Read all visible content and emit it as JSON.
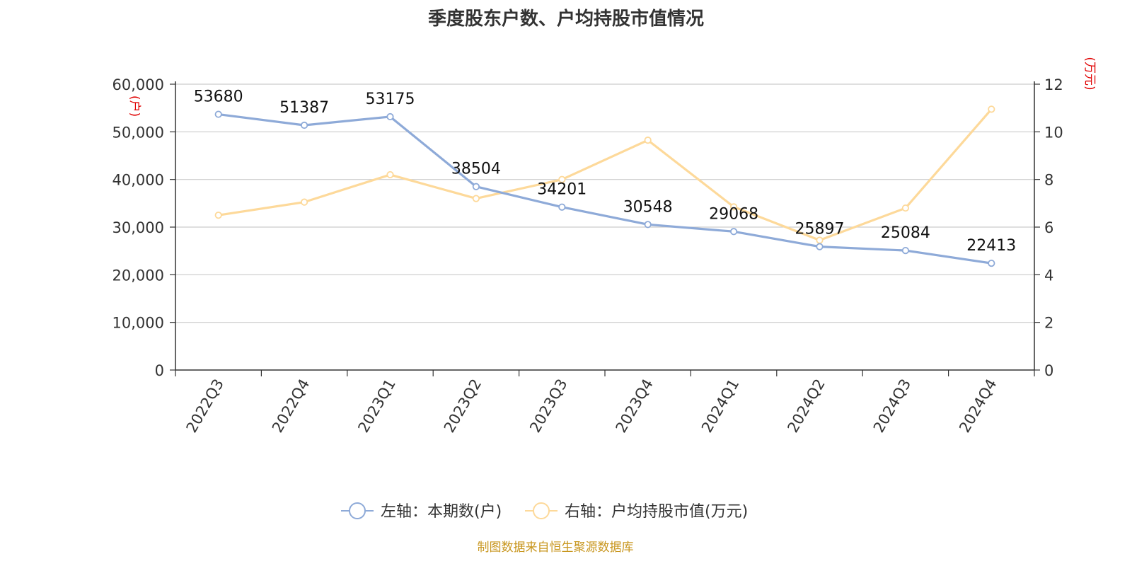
{
  "title": "季度股东户数、户均持股市值情况",
  "source": "制图数据来自恒生聚源数据库",
  "colors": {
    "left_series": "#8eaad8",
    "right_series": "#fdd99a",
    "unit": "#e00000",
    "source": "#c8961e",
    "grid": "#cccccc"
  },
  "chart_data": {
    "type": "line",
    "categories": [
      "2022Q3",
      "2022Q4",
      "2023Q1",
      "2023Q2",
      "2023Q3",
      "2023Q4",
      "2024Q1",
      "2024Q2",
      "2024Q3",
      "2024Q4"
    ],
    "left_axis": {
      "unit": "(户)",
      "ylim": [
        0,
        60000
      ],
      "ticks": [
        "0",
        "10,000",
        "20,000",
        "30,000",
        "40,000",
        "50,000",
        "60,000"
      ]
    },
    "right_axis": {
      "unit": "(万元)",
      "ylim": [
        0,
        12
      ],
      "ticks": [
        "0",
        "2",
        "4",
        "6",
        "8",
        "10",
        "12"
      ]
    },
    "series": [
      {
        "name": "左轴：本期数(户)",
        "axis": "left",
        "values": [
          53680,
          51387,
          53175,
          38504,
          34201,
          30548,
          29068,
          25897,
          25084,
          22413
        ],
        "show_labels": true
      },
      {
        "name": "右轴：户均持股市值(万元)",
        "axis": "right",
        "values": [
          6.5,
          7.05,
          8.2,
          7.2,
          8.0,
          9.65,
          6.85,
          5.45,
          6.8,
          10.95
        ],
        "show_labels": false
      }
    ],
    "grid": true,
    "legend_position": "bottom"
  }
}
